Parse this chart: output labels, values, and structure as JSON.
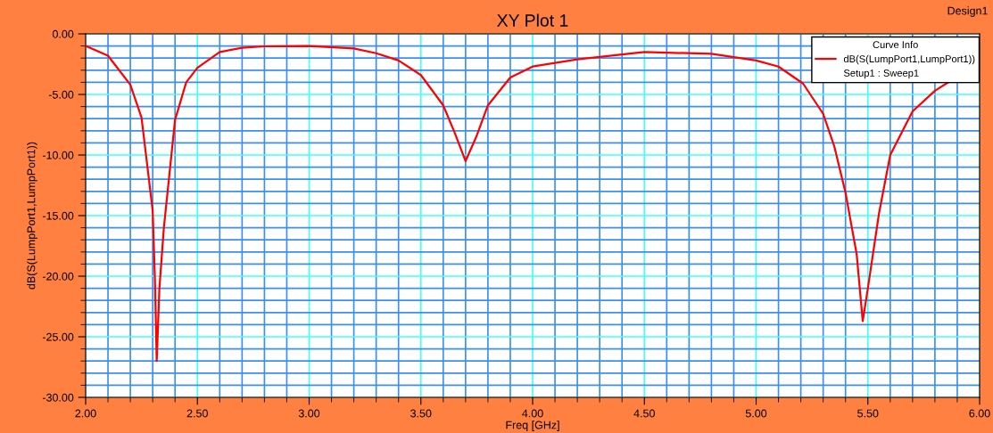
{
  "chart_data": {
    "type": "line",
    "title": "XY Plot 1",
    "xlabel": "Freq [GHz]",
    "ylabel": "dB(S(LumpPort1,LumpPort1))",
    "legend_title": "Curve Info",
    "annotations": [
      "Setup1 : Sweep1",
      "Design1"
    ],
    "series": [
      {
        "name": "dB(S(LumpPort1,LumpPort1))",
        "color": "#ff0000",
        "x": [
          2.0,
          2.1,
          2.2,
          2.25,
          2.3,
          2.31,
          2.318,
          2.33,
          2.35,
          2.4,
          2.45,
          2.5,
          2.6,
          2.7,
          2.8,
          3.0,
          3.2,
          3.3,
          3.4,
          3.5,
          3.6,
          3.65,
          3.7,
          3.75,
          3.8,
          3.9,
          4.0,
          4.2,
          4.5,
          4.8,
          5.0,
          5.1,
          5.21,
          5.3,
          5.35,
          5.4,
          5.45,
          5.477,
          5.5,
          5.55,
          5.6,
          5.7,
          5.8,
          5.86
        ],
        "values": [
          -1.0,
          -1.8,
          -4.2,
          -6.9,
          -14.6,
          -20.3,
          -27.0,
          -21.0,
          -16.0,
          -7.1,
          -4.0,
          -2.8,
          -1.5,
          -1.15,
          -1.03,
          -1.0,
          -1.2,
          -1.6,
          -2.2,
          -3.4,
          -5.9,
          -8.1,
          -10.5,
          -8.4,
          -5.9,
          -3.6,
          -2.7,
          -2.1,
          -1.5,
          -1.65,
          -2.2,
          -2.7,
          -4.1,
          -6.6,
          -9.3,
          -13.1,
          -18.2,
          -23.7,
          -21.0,
          -14.8,
          -10.0,
          -6.4,
          -4.7,
          -4.0
        ]
      }
    ],
    "xlim": [
      2.0,
      6.0
    ],
    "ylim": [
      -30,
      0
    ],
    "xticks": [
      {
        "value": 2.0,
        "label": "2.00"
      },
      {
        "value": 2.1,
        "label": null
      },
      {
        "value": 2.2,
        "label": null
      },
      {
        "value": 2.3,
        "label": null
      },
      {
        "value": 2.4,
        "label": null
      },
      {
        "value": 2.5,
        "label": "2.50"
      },
      {
        "value": 2.6,
        "label": null
      },
      {
        "value": 2.7,
        "label": null
      },
      {
        "value": 2.8,
        "label": null
      },
      {
        "value": 2.9,
        "label": null
      },
      {
        "value": 3.0,
        "label": "3.00"
      },
      {
        "value": 3.1,
        "label": null
      },
      {
        "value": 3.2,
        "label": null
      },
      {
        "value": 3.3,
        "label": null
      },
      {
        "value": 3.4,
        "label": null
      },
      {
        "value": 3.5,
        "label": "3.50"
      },
      {
        "value": 3.6,
        "label": null
      },
      {
        "value": 3.7,
        "label": null
      },
      {
        "value": 3.8,
        "label": null
      },
      {
        "value": 3.9,
        "label": null
      },
      {
        "value": 4.0,
        "label": "4.00"
      },
      {
        "value": 4.1,
        "label": null
      },
      {
        "value": 4.2,
        "label": null
      },
      {
        "value": 4.3,
        "label": null
      },
      {
        "value": 4.4,
        "label": null
      },
      {
        "value": 4.5,
        "label": "4.50"
      },
      {
        "value": 4.6,
        "label": null
      },
      {
        "value": 4.7,
        "label": null
      },
      {
        "value": 4.8,
        "label": null
      },
      {
        "value": 4.9,
        "label": null
      },
      {
        "value": 5.0,
        "label": "5.00"
      },
      {
        "value": 5.1,
        "label": null
      },
      {
        "value": 5.2,
        "label": null
      },
      {
        "value": 5.3,
        "label": null
      },
      {
        "value": 5.4,
        "label": null
      },
      {
        "value": 5.5,
        "label": "5.50"
      },
      {
        "value": 5.6,
        "label": null
      },
      {
        "value": 5.7,
        "label": null
      },
      {
        "value": 5.8,
        "label": null
      },
      {
        "value": 5.9,
        "label": null
      },
      {
        "value": 6.0,
        "label": "6.00"
      }
    ],
    "yticks": [
      {
        "value": -30,
        "label": "-30.00"
      },
      {
        "value": -29,
        "label": null
      },
      {
        "value": -28,
        "label": null
      },
      {
        "value": -27,
        "label": null
      },
      {
        "value": -26,
        "label": null
      },
      {
        "value": -25,
        "label": "-25.00"
      },
      {
        "value": -24,
        "label": null
      },
      {
        "value": -23,
        "label": null
      },
      {
        "value": -22,
        "label": null
      },
      {
        "value": -21,
        "label": null
      },
      {
        "value": -20,
        "label": "-20.00"
      },
      {
        "value": -19,
        "label": null
      },
      {
        "value": -18,
        "label": null
      },
      {
        "value": -17,
        "label": null
      },
      {
        "value": -16,
        "label": null
      },
      {
        "value": -15,
        "label": "-15.00"
      },
      {
        "value": -14,
        "label": null
      },
      {
        "value": -13,
        "label": null
      },
      {
        "value": -12,
        "label": null
      },
      {
        "value": -11,
        "label": null
      },
      {
        "value": -10,
        "label": "-10.00"
      },
      {
        "value": -9,
        "label": null
      },
      {
        "value": -8,
        "label": null
      },
      {
        "value": -7,
        "label": null
      },
      {
        "value": -6,
        "label": null
      },
      {
        "value": -5,
        "label": "-5.00"
      },
      {
        "value": -4,
        "label": null
      },
      {
        "value": -3,
        "label": null
      },
      {
        "value": -2,
        "label": null
      },
      {
        "value": -1,
        "label": null
      },
      {
        "value": 0,
        "label": "0.00"
      }
    ],
    "grid": true,
    "legend": "top right",
    "marker": "none",
    "line_style": "solid"
  }
}
